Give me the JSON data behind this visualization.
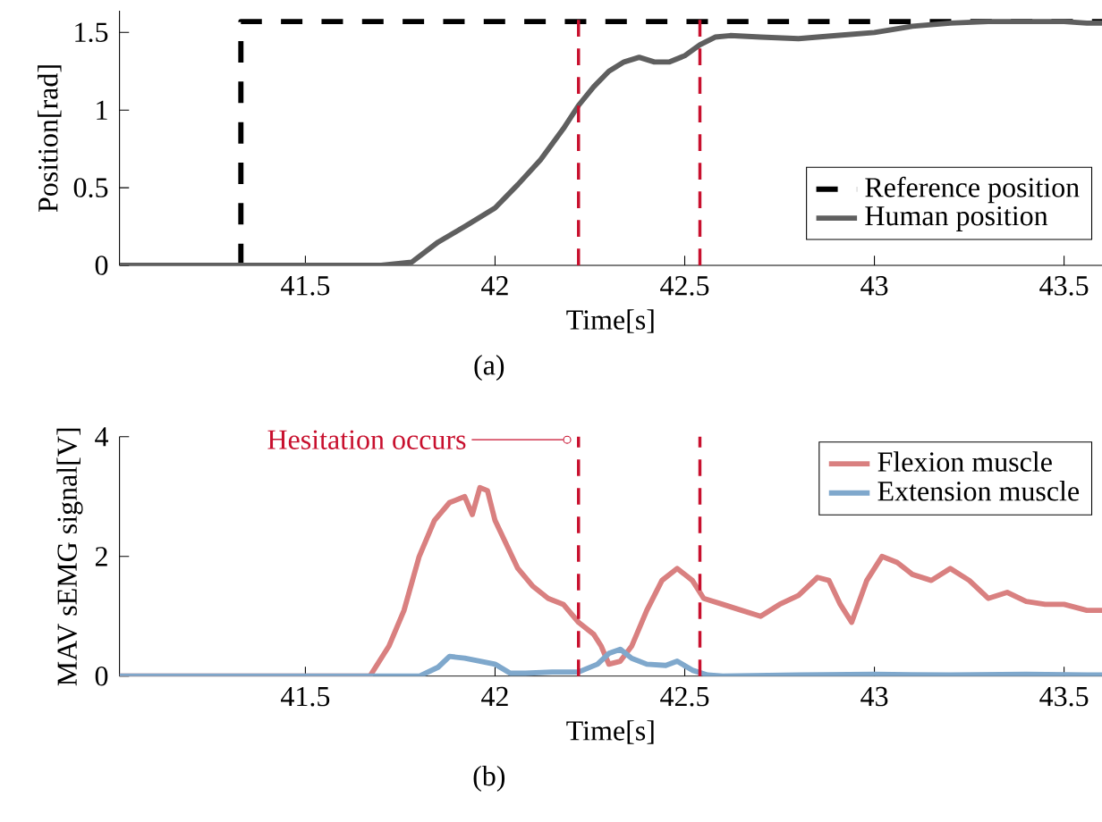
{
  "chart_data": [
    {
      "type": "line",
      "xlabel": "Time[s]",
      "ylabel": "Position[rad]",
      "xlim": [
        41.01,
        43.6
      ],
      "ylim": [
        0,
        1.64
      ],
      "xticks": [
        41.5,
        42,
        42.5,
        43,
        43.5
      ],
      "yticks": [
        0,
        0.5,
        1,
        1.5
      ],
      "grid": false,
      "legend": "bottom right",
      "series": [
        {
          "name": "Reference position",
          "color": "#000000",
          "line_style": "dashed",
          "x": [
            41.01,
            41.33,
            41.33,
            43.6
          ],
          "values": [
            0,
            0,
            1.57,
            1.57
          ]
        },
        {
          "name": "Human position",
          "color": "#5f5f5f",
          "line_style": "solid",
          "x": [
            41.01,
            41.2,
            41.5,
            41.7,
            41.78,
            41.85,
            41.92,
            42.0,
            42.06,
            42.12,
            42.18,
            42.22,
            42.26,
            42.3,
            42.34,
            42.38,
            42.42,
            42.46,
            42.5,
            42.54,
            42.58,
            42.62,
            42.7,
            42.8,
            42.9,
            43.0,
            43.1,
            43.2,
            43.3,
            43.4,
            43.5,
            43.56,
            43.6
          ],
          "values": [
            0,
            0,
            0,
            0,
            0.02,
            0.15,
            0.25,
            0.37,
            0.52,
            0.68,
            0.88,
            1.03,
            1.15,
            1.25,
            1.31,
            1.34,
            1.31,
            1.31,
            1.35,
            1.42,
            1.47,
            1.48,
            1.47,
            1.46,
            1.48,
            1.5,
            1.54,
            1.56,
            1.57,
            1.57,
            1.57,
            1.56,
            1.56
          ]
        }
      ],
      "ref_lines": [
        {
          "axis": "x",
          "value": 42.22,
          "color": "#c8102e",
          "line_style": "dashed"
        },
        {
          "axis": "x",
          "value": 42.54,
          "color": "#c8102e",
          "line_style": "dashed"
        }
      ],
      "annotations": [
        "(a)"
      ]
    },
    {
      "type": "line",
      "xlabel": "Time[s]",
      "ylabel": "MAV sEMG signal[V]",
      "xlim": [
        41.01,
        43.6
      ],
      "ylim": [
        0,
        4
      ],
      "xticks": [
        41.5,
        42,
        42.5,
        43,
        43.5
      ],
      "yticks": [
        0,
        2,
        4
      ],
      "grid": false,
      "legend": "top right",
      "series": [
        {
          "name": "Flexion muscle",
          "color": "#d98080",
          "line_style": "solid",
          "x": [
            41.01,
            41.67,
            41.72,
            41.76,
            41.8,
            41.84,
            41.88,
            41.92,
            41.94,
            41.96,
            41.98,
            42.0,
            42.03,
            42.06,
            42.1,
            42.14,
            42.18,
            42.22,
            42.26,
            42.28,
            42.3,
            42.33,
            42.36,
            42.4,
            42.44,
            42.48,
            42.52,
            42.55,
            42.6,
            42.65,
            42.7,
            42.75,
            42.8,
            42.85,
            42.88,
            42.91,
            42.94,
            42.98,
            43.02,
            43.06,
            43.1,
            43.15,
            43.2,
            43.25,
            43.3,
            43.35,
            43.4,
            43.45,
            43.5,
            43.56,
            43.6
          ],
          "values": [
            0,
            0,
            0.5,
            1.1,
            2.0,
            2.6,
            2.9,
            3.0,
            2.7,
            3.15,
            3.1,
            2.6,
            2.2,
            1.8,
            1.5,
            1.3,
            1.2,
            0.9,
            0.7,
            0.5,
            0.2,
            0.25,
            0.5,
            1.1,
            1.6,
            1.8,
            1.6,
            1.3,
            1.2,
            1.1,
            1.0,
            1.2,
            1.35,
            1.65,
            1.6,
            1.2,
            0.9,
            1.6,
            2.0,
            1.9,
            1.7,
            1.6,
            1.8,
            1.6,
            1.3,
            1.4,
            1.25,
            1.2,
            1.2,
            1.1,
            1.1
          ]
        },
        {
          "name": "Extension muscle",
          "color": "#7fa8cc",
          "line_style": "solid",
          "x": [
            41.01,
            41.8,
            41.85,
            41.88,
            41.92,
            41.96,
            42.0,
            42.04,
            42.08,
            42.15,
            42.22,
            42.27,
            42.3,
            42.33,
            42.36,
            42.4,
            42.45,
            42.48,
            42.52,
            42.56,
            42.6,
            42.8,
            43.0,
            43.2,
            43.4,
            43.56,
            43.6
          ],
          "values": [
            0,
            0,
            0.15,
            0.33,
            0.3,
            0.25,
            0.2,
            0.05,
            0.05,
            0.07,
            0.07,
            0.2,
            0.38,
            0.45,
            0.3,
            0.2,
            0.18,
            0.25,
            0.1,
            0.02,
            0.0,
            0.02,
            0.03,
            0.02,
            0.03,
            0.02,
            0.02
          ]
        }
      ],
      "ref_lines": [
        {
          "axis": "x",
          "value": 42.22,
          "color": "#c8102e",
          "line_style": "dashed"
        },
        {
          "axis": "x",
          "value": 42.54,
          "color": "#c8102e",
          "line_style": "dashed"
        }
      ],
      "annotations": [
        {
          "text": "Hesitation occurs",
          "x": 42.19,
          "y": 3.95
        },
        "(b)"
      ]
    }
  ]
}
